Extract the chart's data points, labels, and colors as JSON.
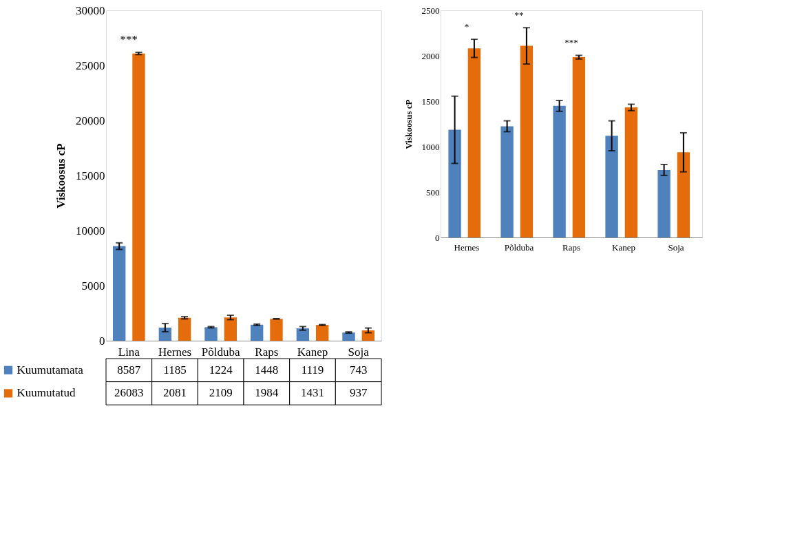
{
  "chart_data": [
    {
      "type": "bar",
      "ylabel": "Viskoosus cP",
      "categories": [
        "Lina",
        "Hernes",
        "Põlduba",
        "Raps",
        "Kanep",
        "Soja"
      ],
      "series": [
        {
          "name": "Kuumutamata",
          "color": "#4f81bd",
          "values": [
            8587,
            1185,
            1224,
            1448,
            1119,
            743
          ],
          "errors": [
            300,
            370,
            60,
            60,
            165,
            60
          ]
        },
        {
          "name": "Kuumutatud",
          "color": "#e46c0a",
          "values": [
            26083,
            2081,
            2109,
            1984,
            1431,
            937
          ],
          "errors": [
            100,
            100,
            200,
            20,
            35,
            215
          ]
        }
      ],
      "ylim": [
        0,
        30000
      ],
      "yticks": [
        0,
        5000,
        10000,
        15000,
        20000,
        25000,
        30000
      ],
      "data_labels": true,
      "legend": "bottom left",
      "annotations": [
        "***"
      ]
    },
    {
      "type": "bar",
      "ylabel": "Viskoosus cP",
      "categories": [
        "Hernes",
        "Põlduba",
        "Raps",
        "Kanep",
        "Soja"
      ],
      "series": [
        {
          "color": "#4f81bd",
          "values": [
            1185,
            1224,
            1448,
            1119,
            743
          ],
          "errors": [
            370,
            60,
            60,
            165,
            60
          ]
        },
        {
          "color": "#e46c0a",
          "values": [
            2081,
            2109,
            1984,
            1431,
            937
          ],
          "errors": [
            100,
            200,
            20,
            35,
            215
          ]
        }
      ],
      "ylim": [
        0,
        2500
      ],
      "yticks": [
        0,
        500,
        1000,
        1500,
        2000,
        2500
      ],
      "annotations": [
        "*",
        "**",
        "***"
      ]
    }
  ]
}
